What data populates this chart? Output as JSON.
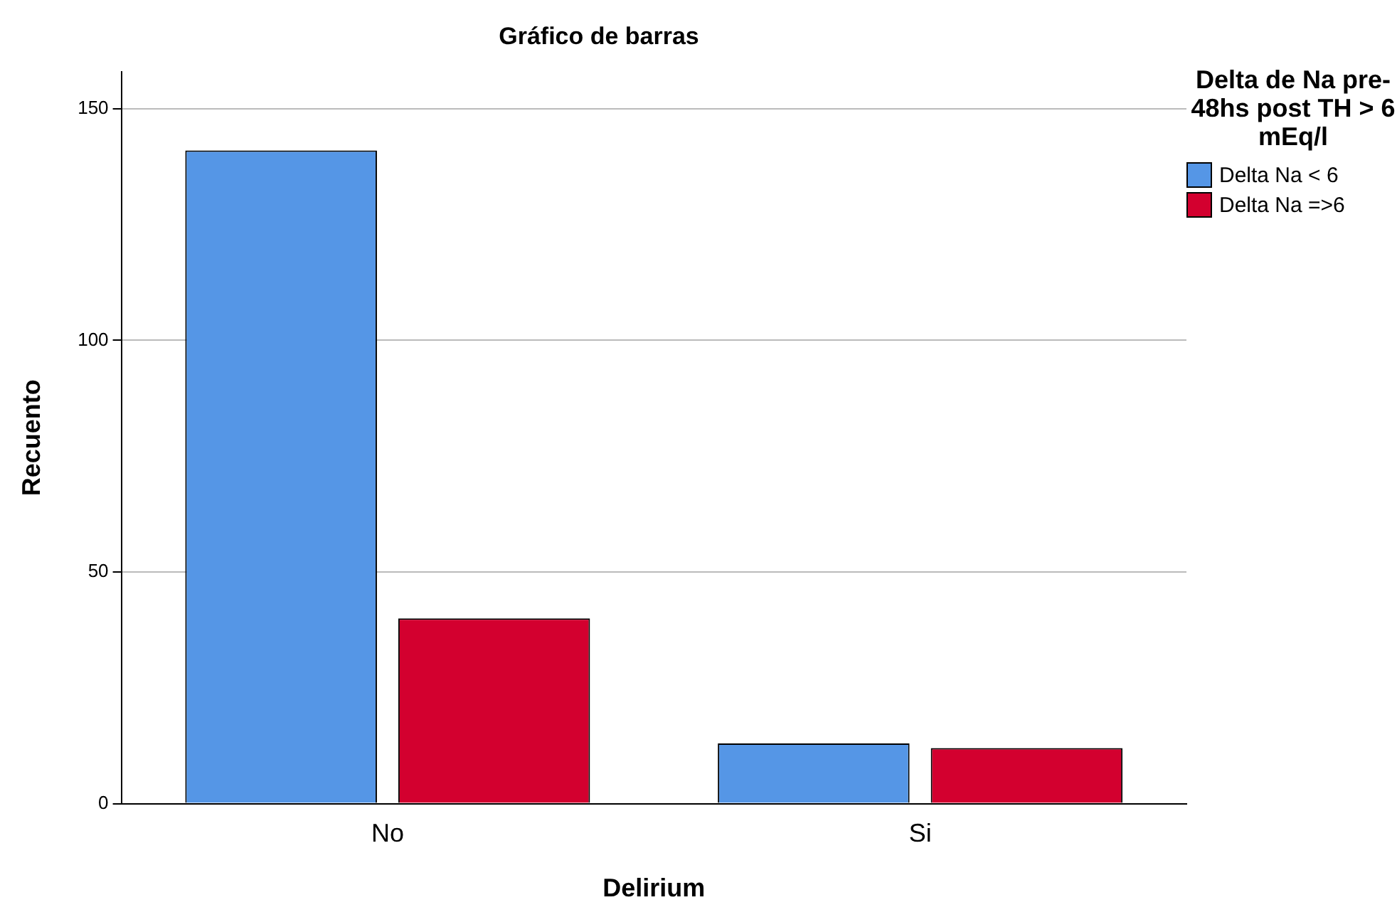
{
  "chart_data": {
    "type": "bar",
    "title": "Gráfico de barras",
    "xlabel": "Delirium",
    "ylabel": "Recuento",
    "legend_title": "Delta de Na pre-48hs post TH > 6 mEq/l",
    "categories": [
      "No",
      "Si"
    ],
    "series": [
      {
        "name": "Delta Na < 6",
        "color": "#5596e6",
        "values": [
          141,
          13
        ]
      },
      {
        "name": "Delta Na =>6",
        "color": "#d3002f",
        "values": [
          40,
          12
        ]
      }
    ],
    "ylim": [
      0,
      158
    ],
    "yticks": [
      0,
      50,
      100,
      150
    ],
    "grid": "y",
    "legend": "top right"
  }
}
